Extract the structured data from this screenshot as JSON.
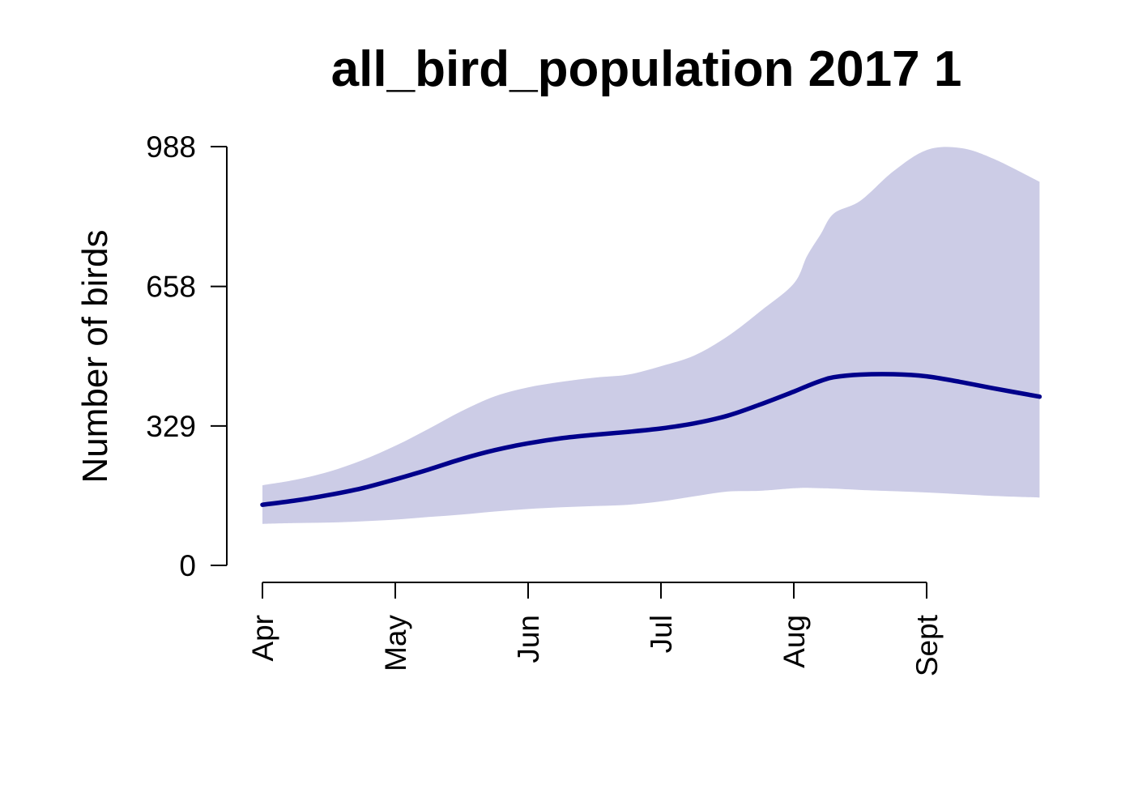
{
  "chart_data": {
    "type": "area",
    "title": "all_bird_population 2017 1",
    "xlabel": "",
    "ylabel": "Number of birds",
    "x_tick_labels": [
      "Apr",
      "May",
      "Jun",
      "Jul",
      "Aug",
      "Sept"
    ],
    "x_tick_positions": [
      0,
      1,
      2,
      3,
      4,
      5
    ],
    "xlim": [
      0,
      5.85
    ],
    "y_ticks": [
      0,
      329,
      658,
      988
    ],
    "ylim": [
      0,
      988
    ],
    "grid": false,
    "legend": "none",
    "colors": {
      "band": "#ccccE6",
      "line": "#00008B",
      "axis": "#000000"
    },
    "x": [
      0,
      0.25,
      0.5,
      0.75,
      1.0,
      1.25,
      1.5,
      1.75,
      2.0,
      2.25,
      2.5,
      2.75,
      3.0,
      3.25,
      3.5,
      3.75,
      4.0,
      4.1,
      4.2,
      4.3,
      4.5,
      4.75,
      5.0,
      5.25,
      5.5,
      5.85
    ],
    "series": [
      {
        "values": [
          143,
          153,
          166,
          182,
          203,
          226,
          251,
          272,
          288,
          300,
          308,
          315,
          323,
          335,
          353,
          380,
          410,
          423,
          435,
          444,
          450,
          451,
          446,
          433,
          418,
          398
        ]
      },
      {
        "role": "upper",
        "values": [
          189,
          202,
          221,
          248,
          282,
          322,
          364,
          399,
          420,
          433,
          443,
          450,
          470,
          495,
          540,
          600,
          665,
          730,
          780,
          830,
          860,
          930,
          980,
          985,
          960,
          905
        ]
      },
      {
        "role": "lower",
        "values": [
          98,
          100,
          101,
          104,
          108,
          114,
          120,
          127,
          133,
          137,
          140,
          143,
          151,
          163,
          174,
          176,
          182,
          183,
          182,
          181,
          178,
          175,
          172,
          168,
          164,
          160
        ]
      }
    ]
  }
}
